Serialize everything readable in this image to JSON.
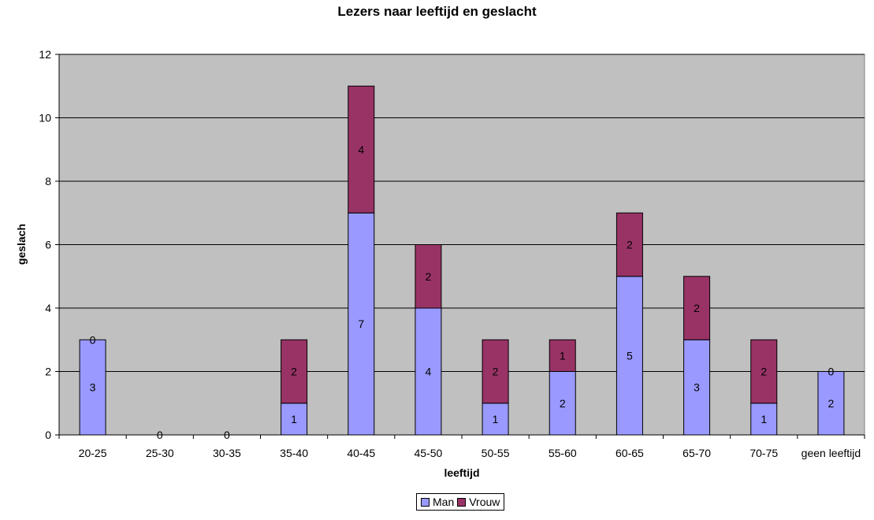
{
  "chart_data": {
    "type": "bar",
    "stacked": true,
    "title": "Lezers naar leeftijd en geslacht",
    "xlabel": "leeftijd",
    "ylabel": "geslach",
    "ylim": [
      0,
      12
    ],
    "yticks": [
      "0",
      "2",
      "4",
      "6",
      "8",
      "10",
      "12"
    ],
    "grid": true,
    "legend_position": "bottom",
    "plot_background": "#c0c0c0",
    "categories": [
      "20-25",
      "25-30",
      "30-35",
      "35-40",
      "40-45",
      "45-50",
      "50-55",
      "55-60",
      "60-65",
      "65-70",
      "70-75",
      "geen leeftijd"
    ],
    "series": [
      {
        "name": "Man",
        "color": "#9999ff",
        "values": [
          3,
          0,
          0,
          1,
          7,
          4,
          1,
          2,
          5,
          3,
          1,
          2
        ]
      },
      {
        "name": "Vrouw",
        "color": "#993366",
        "values": [
          0,
          0,
          0,
          2,
          4,
          2,
          2,
          1,
          2,
          2,
          2,
          0
        ]
      }
    ]
  }
}
